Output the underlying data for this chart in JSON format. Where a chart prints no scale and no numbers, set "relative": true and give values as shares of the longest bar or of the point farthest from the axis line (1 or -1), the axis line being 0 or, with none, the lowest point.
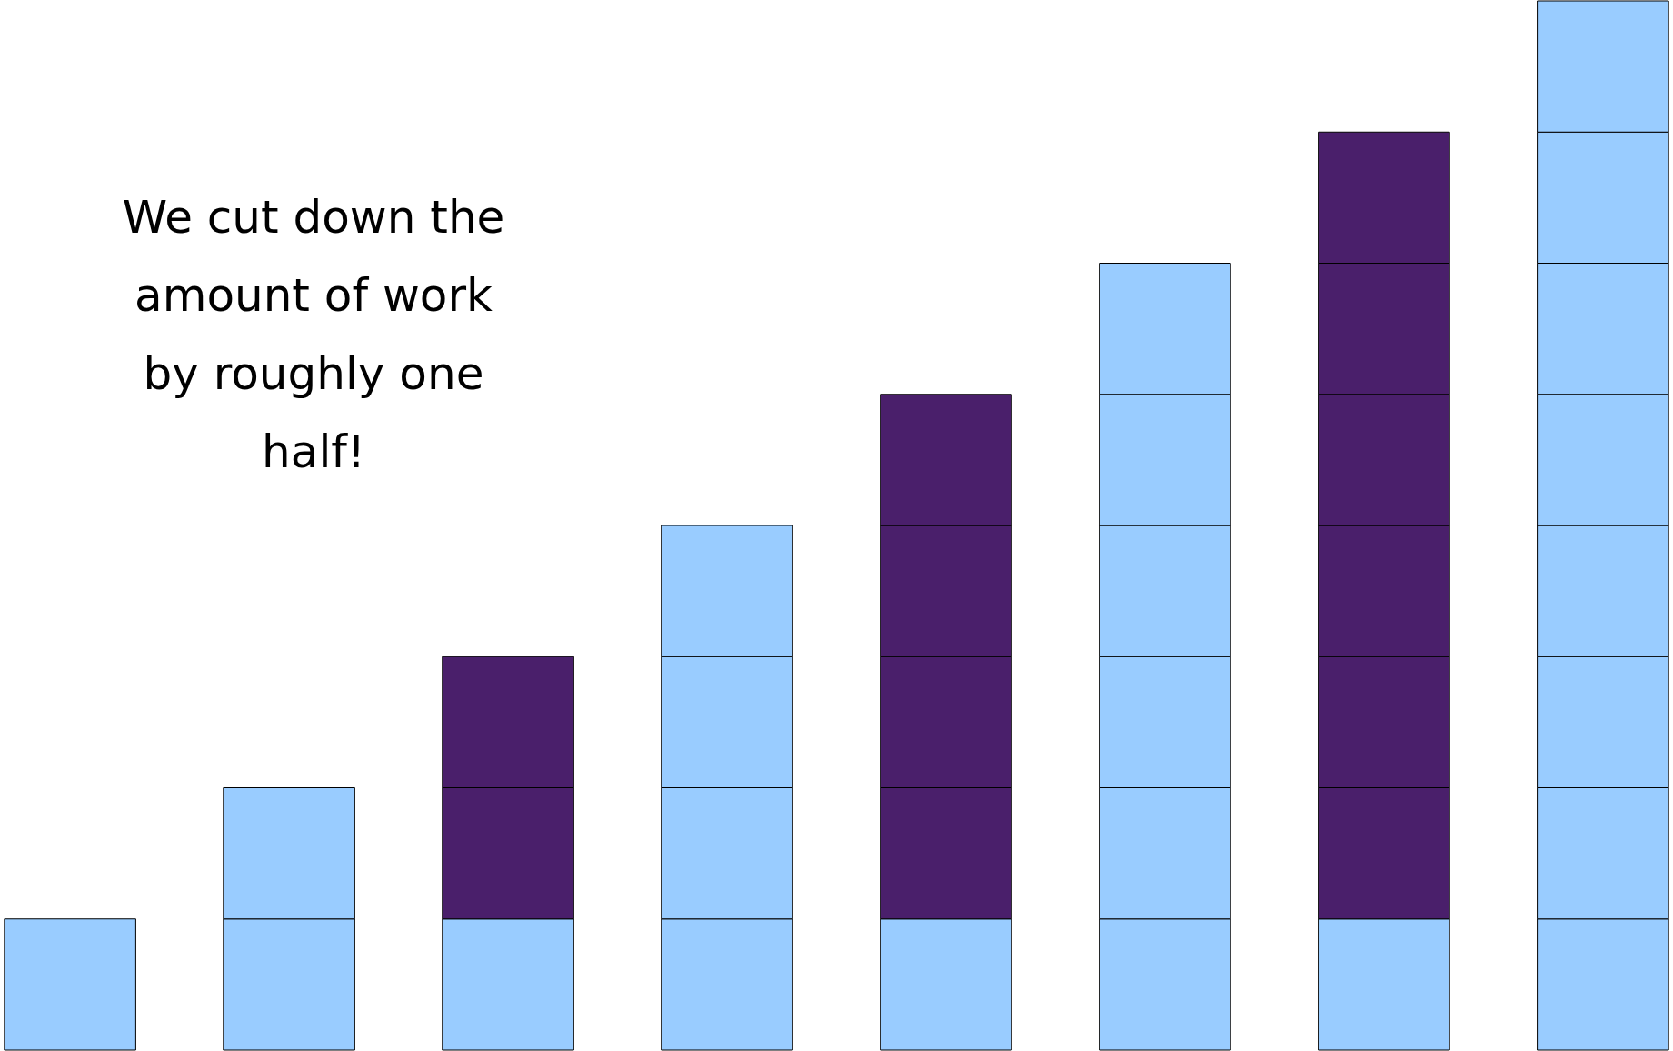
{
  "chart_data": {
    "type": "bar",
    "relative": true,
    "stacked": true,
    "grid": false,
    "tick_labels": false,
    "categories": [
      null,
      null,
      null,
      null,
      null,
      null,
      null,
      null
    ],
    "series": [
      {
        "colors": [
          "#99ccff",
          "#99ccff",
          "#99ccff",
          "#99ccff",
          "#99ccff",
          "#99ccff",
          "#99ccff",
          "#99ccff"
        ],
        "values": [
          0.125,
          0.125,
          0.125,
          0.125,
          0.125,
          0.125,
          0.125,
          0.125
        ]
      },
      {
        "colors": [
          null,
          "#99ccff",
          "#4a1f6b",
          "#99ccff",
          "#4a1f6b",
          "#99ccff",
          "#4a1f6b",
          "#99ccff"
        ],
        "values": [
          null,
          0.125,
          0.125,
          0.125,
          0.125,
          0.125,
          0.125,
          0.125
        ]
      },
      {
        "colors": [
          null,
          null,
          "#4a1f6b",
          "#99ccff",
          "#4a1f6b",
          "#99ccff",
          "#4a1f6b",
          "#99ccff"
        ],
        "values": [
          null,
          null,
          0.125,
          0.125,
          0.125,
          0.125,
          0.125,
          0.125
        ]
      },
      {
        "colors": [
          null,
          null,
          null,
          "#99ccff",
          "#4a1f6b",
          "#99ccff",
          "#4a1f6b",
          "#99ccff"
        ],
        "values": [
          null,
          null,
          null,
          0.125,
          0.125,
          0.125,
          0.125,
          0.125
        ]
      },
      {
        "colors": [
          null,
          null,
          null,
          null,
          "#4a1f6b",
          "#99ccff",
          "#4a1f6b",
          "#99ccff"
        ],
        "values": [
          null,
          null,
          null,
          null,
          0.125,
          0.125,
          0.125,
          0.125
        ]
      },
      {
        "colors": [
          null,
          null,
          null,
          null,
          null,
          "#99ccff",
          "#4a1f6b",
          "#99ccff"
        ],
        "values": [
          null,
          null,
          null,
          null,
          null,
          0.125,
          0.125,
          0.125
        ]
      },
      {
        "colors": [
          null,
          null,
          null,
          null,
          null,
          null,
          "#4a1f6b",
          "#99ccff"
        ],
        "values": [
          null,
          null,
          null,
          null,
          null,
          null,
          0.125,
          0.125
        ]
      },
      {
        "colors": [
          null,
          null,
          null,
          null,
          null,
          null,
          null,
          "#99ccff"
        ],
        "values": [
          null,
          null,
          null,
          null,
          null,
          null,
          null,
          0.125
        ]
      }
    ],
    "annotations": [
      "We cut down the amount of work by roughly one half!"
    ]
  }
}
